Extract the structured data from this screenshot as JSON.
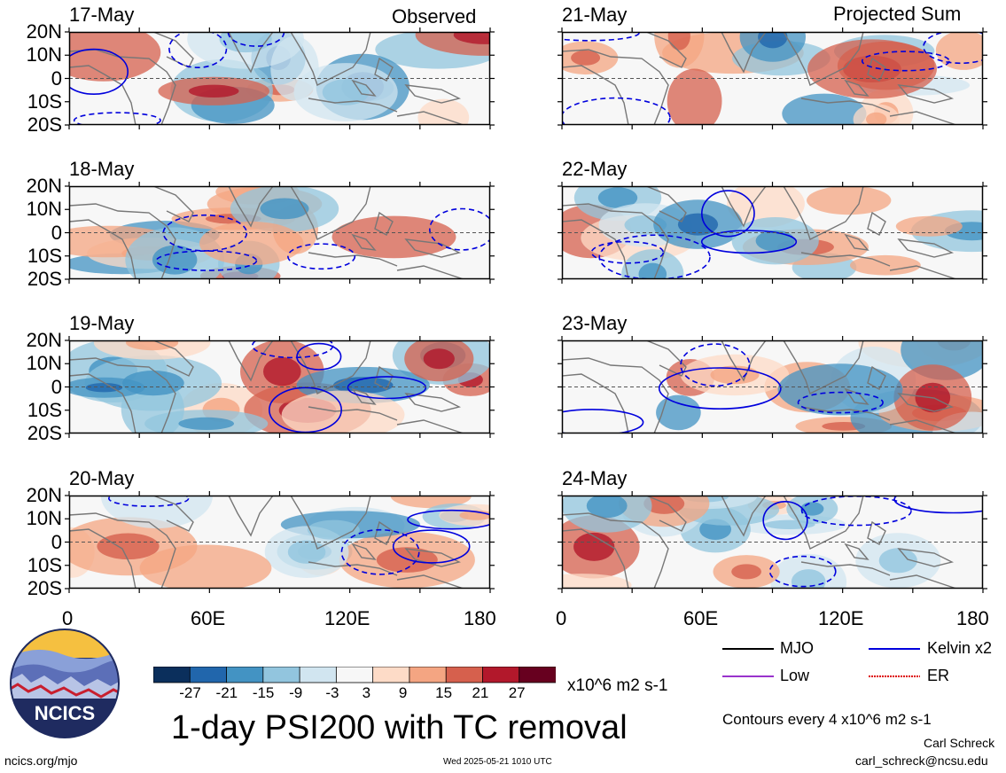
{
  "column_headers": {
    "left": "Observed",
    "right": "Projected Sum"
  },
  "title": "1-day PSI200 with TC removal",
  "chart_data": {
    "type": "contour-map",
    "variable": "1-day PSI200 with TC removal",
    "panels": [
      {
        "date": "17-May",
        "column": "Observed"
      },
      {
        "date": "18-May",
        "column": "Observed"
      },
      {
        "date": "19-May",
        "column": "Observed"
      },
      {
        "date": "20-May",
        "column": "Observed"
      },
      {
        "date": "21-May",
        "column": "Projected Sum"
      },
      {
        "date": "22-May",
        "column": "Projected Sum"
      },
      {
        "date": "23-May",
        "column": "Projected Sum"
      },
      {
        "date": "24-May",
        "column": "Projected Sum"
      }
    ],
    "lat_ticks": [
      "20N",
      "10N",
      "0",
      "10S",
      "20S"
    ],
    "lon_ticks": [
      "0",
      "60E",
      "120E",
      "180"
    ],
    "xlim": [
      0,
      180
    ],
    "ylim": [
      -20,
      20
    ],
    "colorbar": {
      "ticks": [
        "-27",
        "-21",
        "-15",
        "-9",
        "-3",
        "3",
        "9",
        "15",
        "21",
        "27"
      ],
      "unit": "x10^6 m2 s-1",
      "colors": [
        "#0b2f5c",
        "#2166ac",
        "#4393c3",
        "#92c5de",
        "#d1e5f0",
        "#f7f7f7",
        "#fddbc7",
        "#f4a582",
        "#d6604d",
        "#b2182b",
        "#67001f"
      ]
    },
    "legend": [
      {
        "label": "MJO",
        "color": "#000000",
        "style": "solid"
      },
      {
        "label": "Kelvin x2",
        "color": "#0000dd",
        "style": "solid"
      },
      {
        "label": "Low",
        "color": "#9933cc",
        "style": "solid"
      },
      {
        "label": "ER",
        "color": "#dd0000",
        "style": "dotted"
      }
    ],
    "contour_note": "Contours every 4 x10^6 m2 s-1"
  },
  "logo": {
    "text": "NCICS"
  },
  "footer": {
    "url": "ncics.org/mjo",
    "timestamp": "Wed 2025-05-21 1010 UTC",
    "author": "Carl Schreck",
    "email": "carl_schreck@ncsu.edu"
  }
}
